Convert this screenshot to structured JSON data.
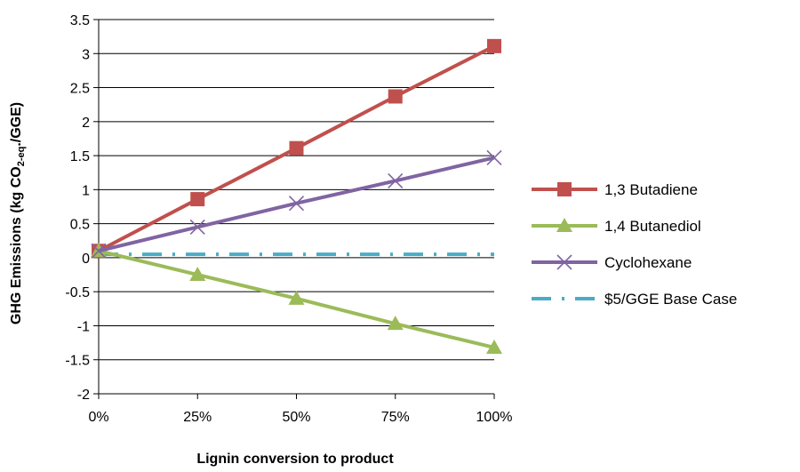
{
  "chart_data": {
    "type": "line",
    "xlabel": "Lignin conversion to product",
    "ylabel": {
      "prefix": "GHG Emissions  (kg CO",
      "sub": "2-eq",
      "suffix": "./GGE)"
    },
    "x": [
      0,
      25,
      50,
      75,
      100
    ],
    "x_tick_labels": [
      "0%",
      "25%",
      "50%",
      "75%",
      "100%"
    ],
    "y_ticks": [
      "-2",
      "-1.5",
      "-1",
      "-0.5",
      "0",
      "0.5",
      "1",
      "1.5",
      "2",
      "2.5",
      "3",
      "3.5"
    ],
    "xlim": [
      0,
      100
    ],
    "ylim": [
      -2,
      3.5
    ],
    "grid": "horizontal",
    "legend_position": "right",
    "series": [
      {
        "name": "1,3 Butadiene",
        "values": [
          0.1,
          0.86,
          1.61,
          2.37,
          3.11
        ],
        "color": "#C0504D",
        "marker": "square",
        "style": "solid"
      },
      {
        "name": "1,4 Butanediol",
        "values": [
          0.1,
          -0.25,
          -0.6,
          -0.97,
          -1.32
        ],
        "color": "#9BBB59",
        "marker": "triangle",
        "style": "solid"
      },
      {
        "name": "Cyclohexane",
        "values": [
          0.1,
          0.45,
          0.8,
          1.13,
          1.47
        ],
        "color": "#8064A2",
        "marker": "x",
        "style": "solid"
      },
      {
        "name": "$5/GGE Base Case",
        "values": [
          0.05,
          0.05,
          0.05,
          0.05,
          0.05
        ],
        "color": "#4BACC6",
        "marker": "none",
        "style": "dash-dot"
      }
    ]
  }
}
